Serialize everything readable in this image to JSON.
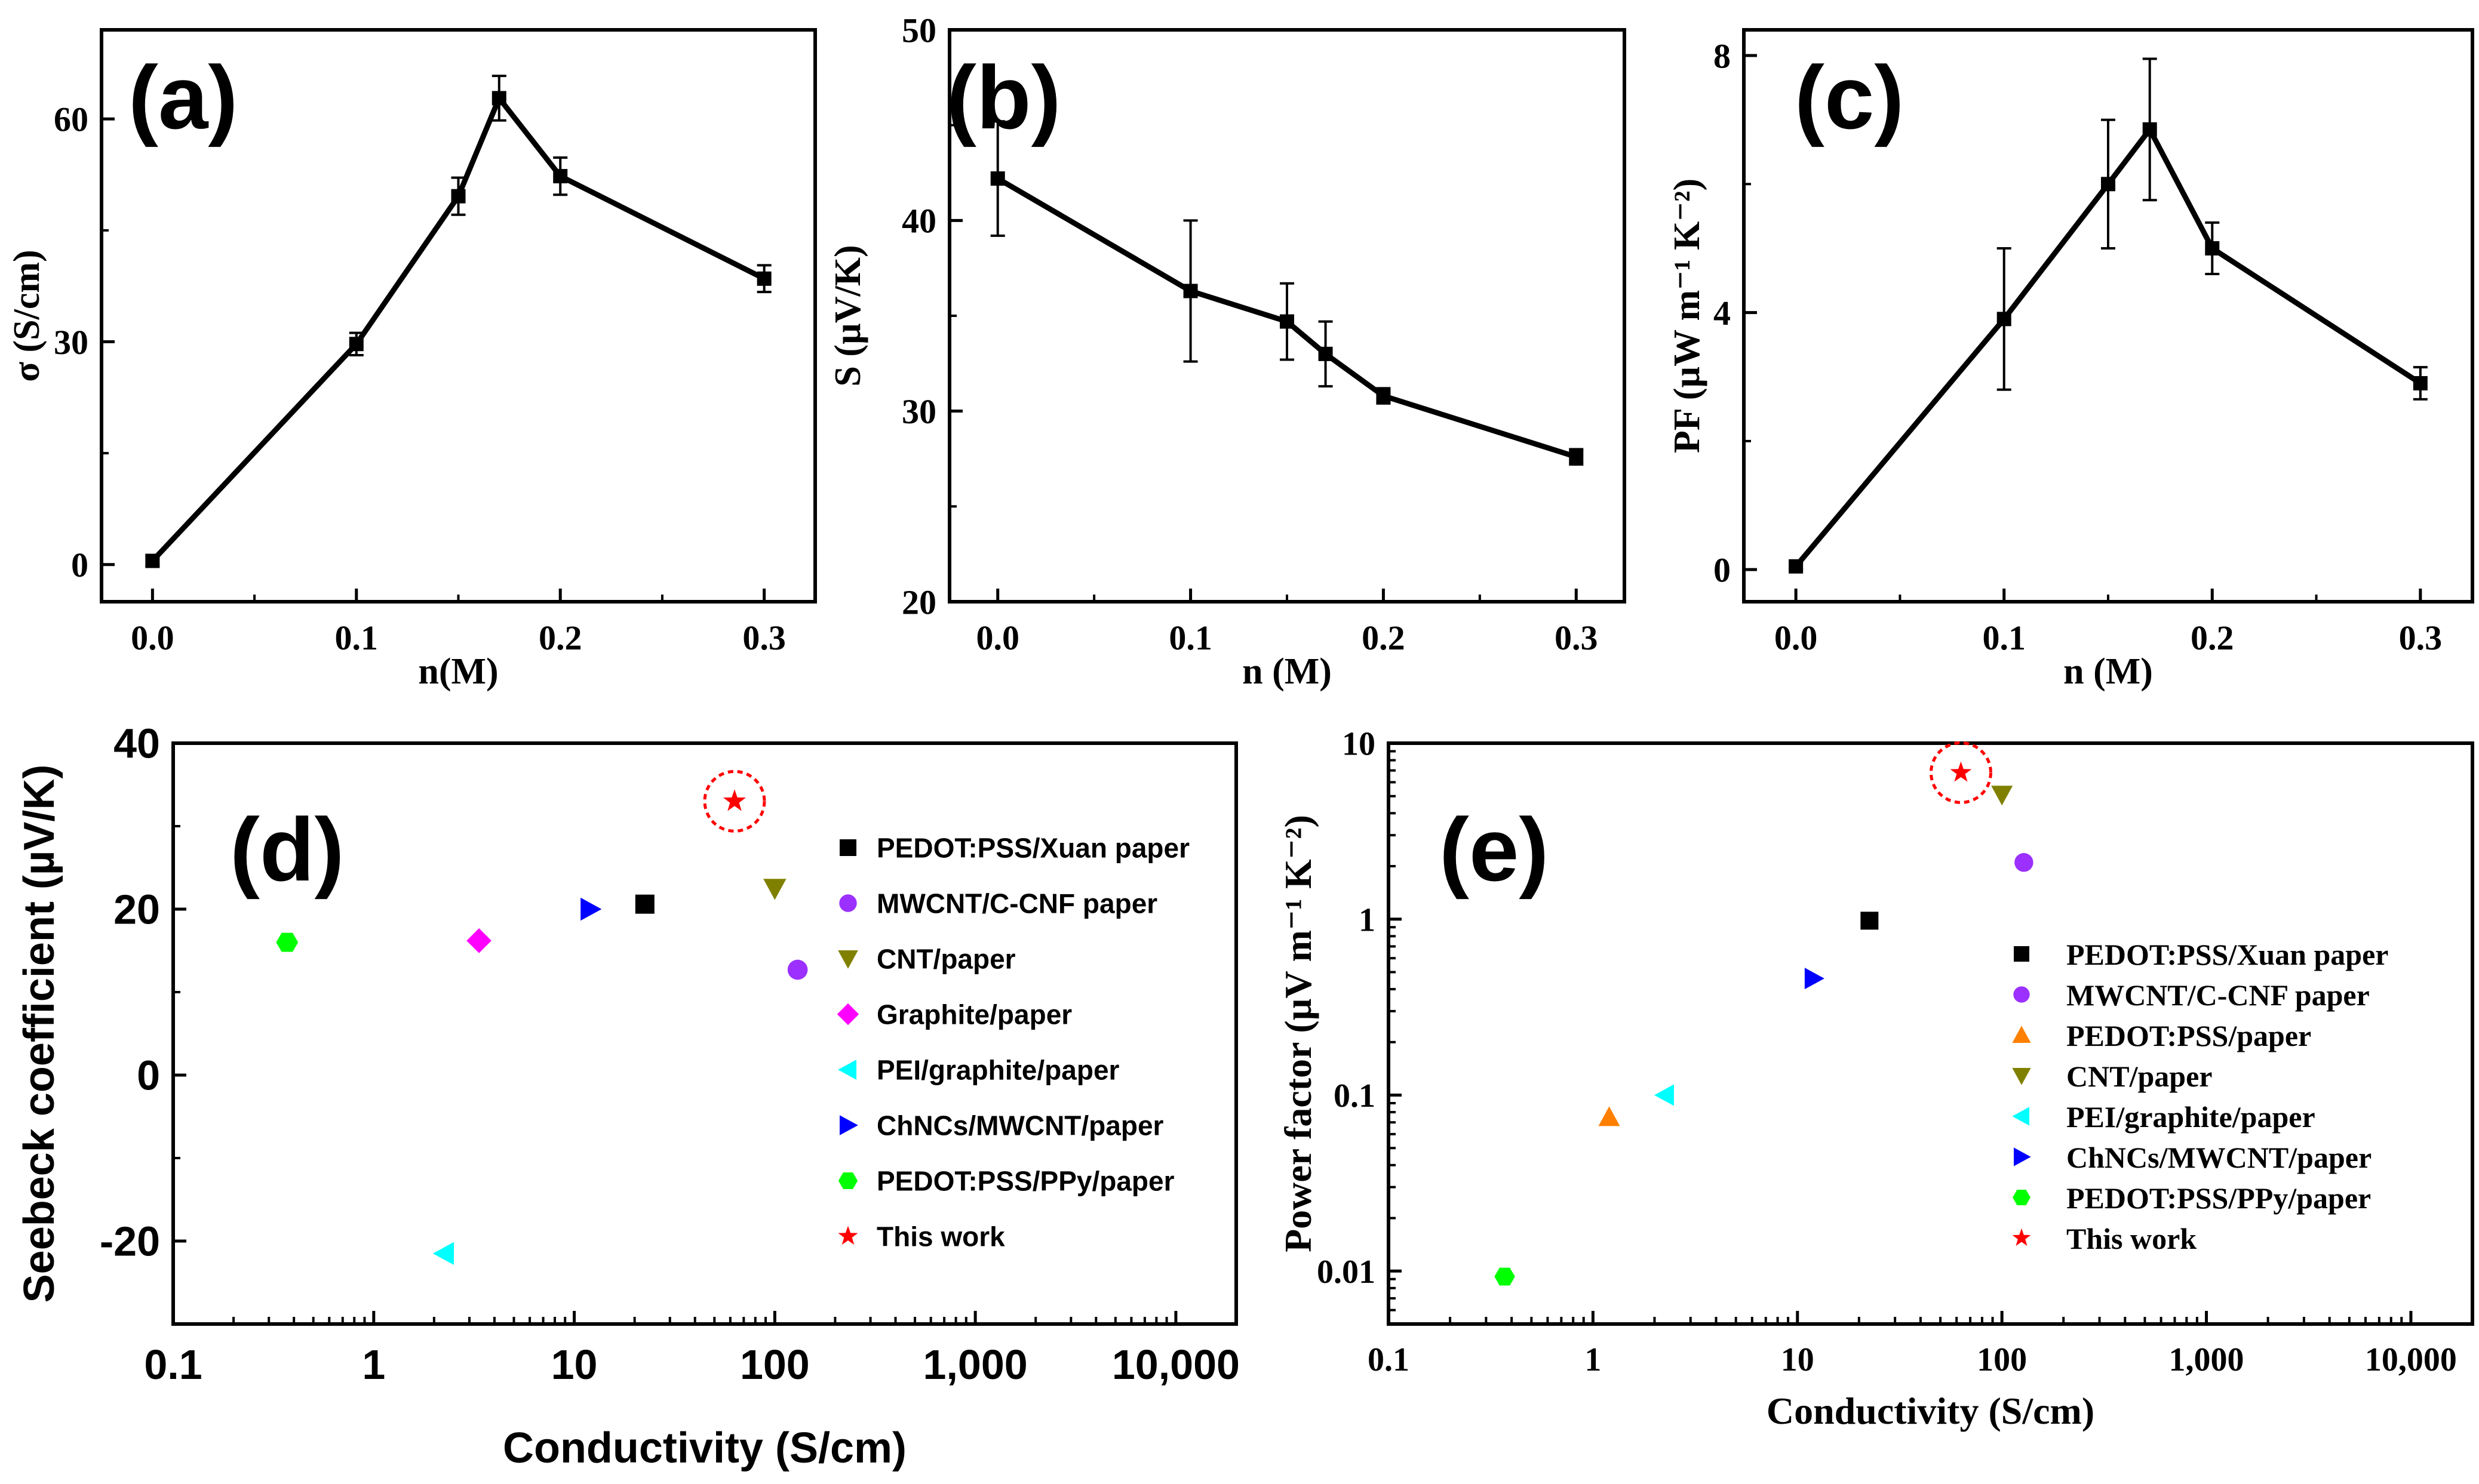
{
  "chart_data": [
    {
      "panel": "(a)",
      "type": "line",
      "xlabel": "n(M)",
      "ylabel": "σ (S/cm)",
      "x": [
        0.0,
        0.1,
        0.15,
        0.17,
        0.2,
        0.3
      ],
      "y": [
        0.5,
        29.7,
        49.6,
        62.8,
        52.3,
        38.5
      ],
      "yerr": [
        0.6,
        1.5,
        2.5,
        3.0,
        2.5,
        1.8
      ],
      "xlim": [
        -0.025,
        0.325
      ],
      "ylim": [
        -5,
        72
      ],
      "xticks": [
        0.0,
        0.1,
        0.2,
        0.3
      ],
      "xtick_labels": [
        "0.0",
        "0.1",
        "0.2",
        "0.3"
      ],
      "yticks": [
        0,
        30,
        60
      ],
      "ytick_labels": [
        "0",
        "30",
        "60"
      ]
    },
    {
      "panel": "(b)",
      "type": "line",
      "xlabel": "n (M)",
      "ylabel": "S (µV/K)",
      "x": [
        0.0,
        0.1,
        0.15,
        0.17,
        0.2,
        0.3
      ],
      "y": [
        42.2,
        36.3,
        34.7,
        33.0,
        30.8,
        27.6
      ],
      "yerr": [
        3.0,
        3.7,
        2.0,
        1.7,
        0.4,
        0.4
      ],
      "xlim": [
        -0.025,
        0.325
      ],
      "ylim": [
        20,
        50
      ],
      "xticks": [
        0.0,
        0.1,
        0.2,
        0.3
      ],
      "xtick_labels": [
        "0.0",
        "0.1",
        "0.2",
        "0.3"
      ],
      "yticks": [
        20,
        30,
        40,
        50
      ],
      "ytick_labels": [
        "20",
        "30",
        "40",
        "50"
      ]
    },
    {
      "panel": "(c)",
      "type": "line",
      "xlabel": "n (M)",
      "ylabel": "PF (µW m⁻¹ K⁻²)",
      "x": [
        0.0,
        0.1,
        0.15,
        0.17,
        0.2,
        0.3
      ],
      "y": [
        0.05,
        3.9,
        6.0,
        6.85,
        5.0,
        2.9
      ],
      "yerr": [
        0.05,
        1.1,
        1.0,
        1.1,
        0.4,
        0.25
      ],
      "xlim": [
        -0.025,
        0.325
      ],
      "ylim": [
        -0.5,
        8.4
      ],
      "xticks": [
        0.0,
        0.1,
        0.2,
        0.3
      ],
      "xtick_labels": [
        "0.0",
        "0.1",
        "0.2",
        "0.3"
      ],
      "yticks": [
        0,
        4,
        8
      ],
      "ytick_labels": [
        "0",
        "4",
        "8"
      ]
    },
    {
      "panel": "(d)",
      "type": "scatter",
      "xscale": "log",
      "xlabel": "Conductivity (S/cm)",
      "ylabel": "Seebeck coefficient (µV/K)",
      "xlim": [
        0.1,
        20000
      ],
      "ylim": [
        -30,
        40
      ],
      "xticks": [
        0.1,
        1,
        10,
        100,
        1000,
        10000
      ],
      "xtick_labels": [
        "0.1",
        "1",
        "10",
        "100",
        "1,000",
        "10,000"
      ],
      "yticks": [
        -20,
        0,
        20,
        40
      ],
      "ytick_labels": [
        "-20",
        "0",
        "20",
        "40"
      ],
      "legend_position": "right",
      "series": [
        {
          "name": "PEDOT:PSS/Xuan paper",
          "marker": "square",
          "color": "#000000",
          "x": 22.5,
          "y": 20.6
        },
        {
          "name": "MWCNT/C-CNF paper",
          "marker": "circle",
          "color": "#9b30ff",
          "x": 130,
          "y": 12.7
        },
        {
          "name": "CNT/paper",
          "marker": "triangle-down",
          "color": "#808000",
          "x": 100,
          "y": 22.5
        },
        {
          "name": "Graphite/paper",
          "marker": "diamond",
          "color": "#ff00ff",
          "x": 3.35,
          "y": 16.2
        },
        {
          "name": "PEI/graphite/paper",
          "marker": "triangle-left",
          "color": "#00ffff",
          "x": 2.25,
          "y": -21.5
        },
        {
          "name": "ChNCs/MWCNT/paper",
          "marker": "triangle-right",
          "color": "#0000ff",
          "x": 12,
          "y": 20.0
        },
        {
          "name": "PEDOT:PSS/PPy/paper",
          "marker": "hexagon",
          "color": "#00ff00",
          "x": 0.37,
          "y": 16.0
        },
        {
          "name": "This work",
          "marker": "star",
          "color": "#ff0000",
          "x": 63,
          "y": 33.0,
          "highlight": "dashed-circle"
        }
      ]
    },
    {
      "panel": "(e)",
      "type": "scatter",
      "xscale": "log",
      "yscale": "log",
      "xlabel": "Conductivity (S/cm)",
      "ylabel": "Power factor (µV m⁻¹ K⁻²)",
      "xlim": [
        0.1,
        20000
      ],
      "ylim": [
        0.005,
        10
      ],
      "xticks": [
        0.1,
        1,
        10,
        100,
        1000,
        10000
      ],
      "xtick_labels": [
        "0.1",
        "1",
        "10",
        "100",
        "1,000",
        "10,000"
      ],
      "yticks": [
        0.01,
        0.1,
        1,
        10
      ],
      "ytick_labels": [
        "0.01",
        "0.1",
        "1",
        "10"
      ],
      "legend_position": "right",
      "series": [
        {
          "name": "PEDOT:PSS/Xuan paper",
          "marker": "square",
          "color": "#000000",
          "x": 22.5,
          "y": 0.98
        },
        {
          "name": "MWCNT/C-CNF paper",
          "marker": "circle",
          "color": "#9b30ff",
          "x": 128,
          "y": 2.1
        },
        {
          "name": "PEDOT:PSS/paper",
          "marker": "triangle-up",
          "color": "#ff8000",
          "x": 1.2,
          "y": 0.075
        },
        {
          "name": "CNT/paper",
          "marker": "triangle-down",
          "color": "#808000",
          "x": 100,
          "y": 5.1
        },
        {
          "name": "PEI/graphite/paper",
          "marker": "triangle-left",
          "color": "#00ffff",
          "x": 2.25,
          "y": 0.1
        },
        {
          "name": "ChNCs/MWCNT/paper",
          "marker": "triangle-right",
          "color": "#0000ff",
          "x": 12,
          "y": 0.46
        },
        {
          "name": "PEDOT:PSS/PPy/paper",
          "marker": "hexagon",
          "color": "#00ff00",
          "x": 0.37,
          "y": 0.0093
        },
        {
          "name": "This work",
          "marker": "star",
          "color": "#ff0000",
          "x": 63,
          "y": 6.8,
          "highlight": "dashed-circle"
        }
      ]
    }
  ]
}
